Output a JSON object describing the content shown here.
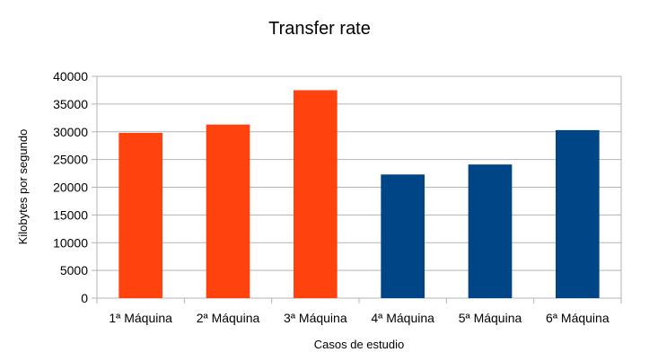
{
  "chart_data": {
    "type": "bar",
    "title": "Transfer rate",
    "xlabel": "Casos de estudio",
    "ylabel": "Kilobytes por segundo",
    "ylim": [
      0,
      40000
    ],
    "ytick_step": 5000,
    "yticks": [
      "0",
      "5000",
      "10000",
      "15000",
      "20000",
      "25000",
      "30000",
      "35000",
      "40000"
    ],
    "grid": true,
    "categories": [
      "1ª Máquina",
      "2ª Máquina",
      "3ª Máquina",
      "4ª Máquina",
      "5ª Máquina",
      "6ª Máquina"
    ],
    "values": [
      29800,
      31300,
      37500,
      22300,
      24100,
      30300
    ],
    "colors": [
      "#ff420e",
      "#ff420e",
      "#ff420e",
      "#004586",
      "#004586",
      "#004586"
    ]
  }
}
